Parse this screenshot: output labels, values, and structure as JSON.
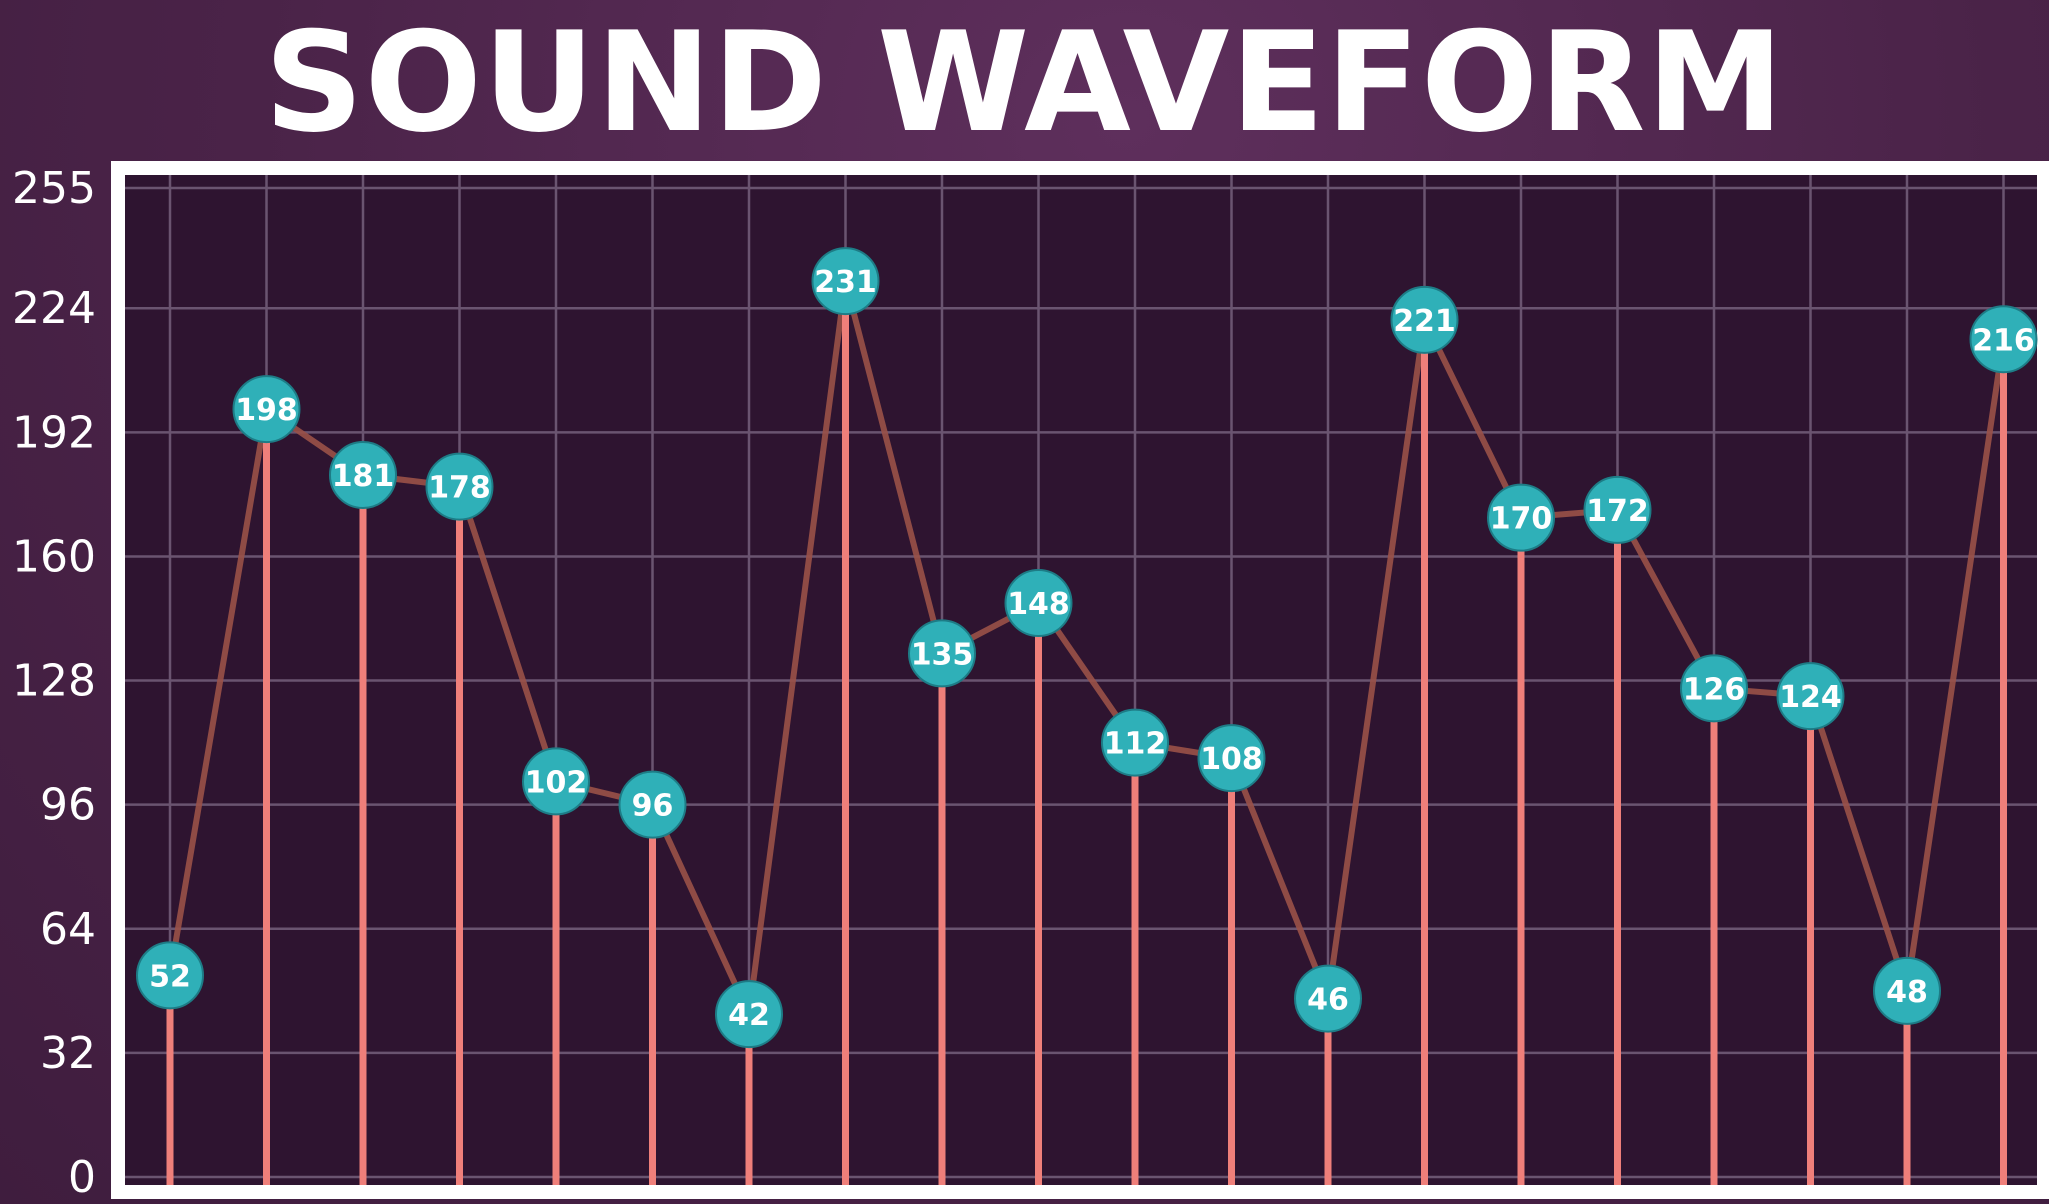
{
  "chart_data": {
    "type": "line",
    "title": "SOUND WAVEFORM",
    "xlabel": "",
    "ylabel": "",
    "ylim": [
      0,
      255
    ],
    "yticks": [
      "0",
      "32",
      "64",
      "96",
      "128",
      "160",
      "192",
      "224",
      "255"
    ],
    "grid": true,
    "legend": "none",
    "series": [
      {
        "values": [
          52,
          198,
          181,
          178,
          102,
          96,
          42,
          231,
          135,
          148,
          112,
          108,
          46,
          221,
          170,
          172,
          126,
          124,
          48,
          216
        ]
      }
    ],
    "colors": {
      "background": "#4a2348",
      "plot_background": "#2e1430",
      "plot_border": "#ffffff",
      "grid": "#6a5470",
      "stem": "#ef7f7a",
      "connector": "#9a5148",
      "marker": "#2fb0b8",
      "text": "#ffffff"
    }
  }
}
